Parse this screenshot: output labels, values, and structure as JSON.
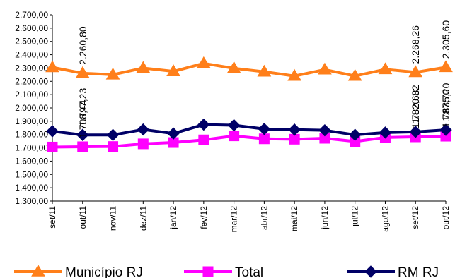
{
  "chart_data": {
    "type": "line",
    "title": "",
    "xlabel": "",
    "ylabel": "",
    "categories": [
      "set/11",
      "out/11",
      "nov/11",
      "dez/11",
      "jan/12",
      "fev/12",
      "mar/12",
      "abr/12",
      "mai/12",
      "jun/12",
      "jul/12",
      "ago/12",
      "set/12",
      "out/12"
    ],
    "ylim": [
      1300,
      2700
    ],
    "y_ticks": [
      "1.300,00",
      "1.400,00",
      "1.500,00",
      "1.600,00",
      "1.700,00",
      "1.800,00",
      "1.900,00",
      "2.000,00",
      "2.100,00",
      "2.200,00",
      "2.300,00",
      "2.400,00",
      "2.500,00",
      "2.600,00",
      "2.700,00"
    ],
    "grid": false,
    "legend_position": "bottom",
    "series": [
      {
        "name": "Município RJ",
        "color": "#FF7F1A",
        "marker": "triangle",
        "values": [
          2305,
          2260.8,
          2250,
          2300,
          2275,
          2335,
          2298,
          2272,
          2240,
          2288,
          2240,
          2290,
          2268.26,
          2305.6
        ]
      },
      {
        "name": "Total",
        "color": "#FF00FF",
        "marker": "square",
        "values": [
          1706,
          1708.44,
          1710,
          1730,
          1740,
          1760,
          1790,
          1768,
          1765,
          1772,
          1748,
          1778,
          1782.68,
          1787.7
        ]
      },
      {
        "name": "RM RJ",
        "color": "#000066",
        "marker": "diamond",
        "values": [
          1825,
          1797.23,
          1797,
          1838,
          1808,
          1875,
          1870,
          1842,
          1837,
          1832,
          1798,
          1815,
          1820.32,
          1835.2
        ]
      }
    ],
    "data_labels": [
      {
        "series": 0,
        "index": 1,
        "text": "2.260,80"
      },
      {
        "series": 2,
        "index": 1,
        "text": "1.797,23"
      },
      {
        "series": 1,
        "index": 1,
        "text": "1.708,44"
      },
      {
        "series": 0,
        "index": 12,
        "text": "2.268,26"
      },
      {
        "series": 2,
        "index": 12,
        "text": "1.820,32"
      },
      {
        "series": 1,
        "index": 12,
        "text": "1.782,68"
      },
      {
        "series": 0,
        "index": 13,
        "text": "2.305,60"
      },
      {
        "series": 2,
        "index": 13,
        "text": "1.835,20"
      },
      {
        "series": 1,
        "index": 13,
        "text": "1.787,70"
      }
    ]
  }
}
